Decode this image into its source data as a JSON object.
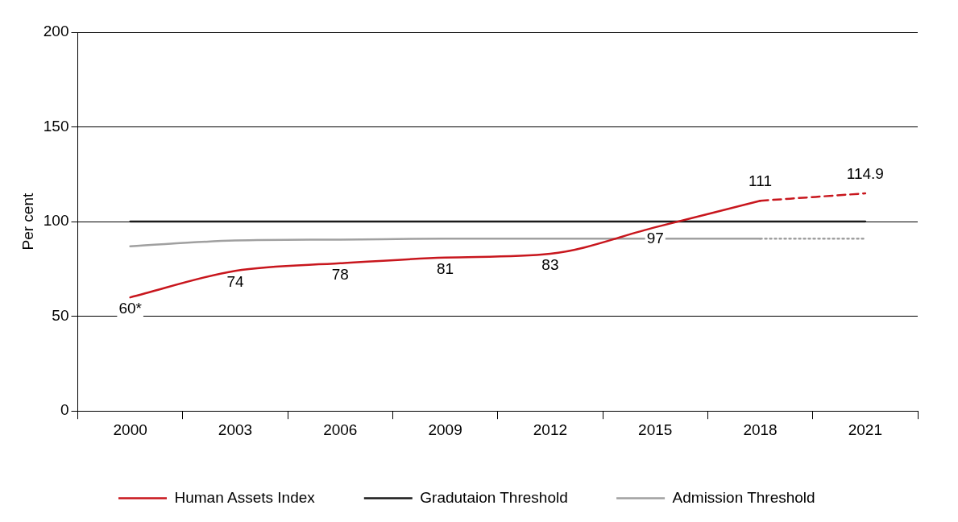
{
  "chart_data": {
    "type": "line",
    "ylabel": "Per cent",
    "categories": [
      "2000",
      "2003",
      "2006",
      "2009",
      "2012",
      "2015",
      "2018",
      "2021"
    ],
    "ylim": [
      0,
      200
    ],
    "yticks": [
      0,
      50,
      100,
      150,
      200
    ],
    "grid": "y",
    "legend": "bottom",
    "marker": "none",
    "series": [
      {
        "name": "Human Assets Index",
        "color": "#c8161d",
        "line_style": "solid",
        "values": [
          60,
          74,
          78,
          81,
          83,
          97,
          111,
          null
        ],
        "value_labels": [
          "60*",
          "74",
          "78",
          "81",
          "83",
          "97",
          "111",
          null
        ]
      },
      {
        "color": "#c8161d",
        "line_style": "dashed",
        "values": [
          null,
          null,
          null,
          null,
          null,
          null,
          111,
          114.9
        ],
        "value_labels": [
          null,
          null,
          null,
          null,
          null,
          null,
          null,
          "114.9"
        ]
      },
      {
        "name": "Gradutaion Threshold",
        "color": "#1a1a1a",
        "line_style": "solid",
        "values": [
          100,
          100,
          100,
          100,
          100,
          100,
          100,
          100
        ]
      },
      {
        "name": "Admission Threshold",
        "color": "#a0a0a0",
        "line_style": "solid",
        "values": [
          87,
          90,
          90.5,
          91,
          91,
          91,
          91,
          null
        ]
      },
      {
        "color": "#a0a0a0",
        "line_style": "dotted",
        "values": [
          null,
          null,
          null,
          null,
          null,
          null,
          91,
          91
        ]
      }
    ]
  }
}
